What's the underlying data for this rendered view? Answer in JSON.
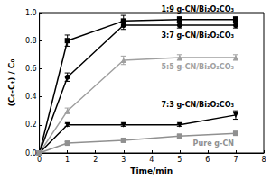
{
  "chart_data": {
    "type": "line",
    "x_label": "Time/min",
    "y_label": "(C₀-Cₜ) / C₀",
    "x": [
      0,
      1,
      3,
      5,
      7
    ],
    "xlim": [
      0,
      8
    ],
    "xticks": [
      0,
      1,
      2,
      3,
      4,
      5,
      6,
      7,
      8
    ],
    "ylim": [
      0,
      1.0
    ],
    "yticks": [
      {
        "value": 0,
        "label": "0.0"
      },
      0.2,
      0.4,
      0.6,
      0.8,
      {
        "value": 1.0,
        "label": "1.0"
      }
    ],
    "series": [
      {
        "name": "1:9 g-CN/Bi₂O₂CO₃",
        "color": "#000000",
        "marker": "square",
        "values": [
          0,
          0.8,
          0.94,
          0.95,
          0.95
        ],
        "errors": [
          0,
          0.04,
          0.04,
          0.02,
          0.02
        ]
      },
      {
        "name": "3:7 g-CN/Bi₂O₂CO₃",
        "color": "#000000",
        "marker": "circle",
        "values": [
          0,
          0.54,
          0.91,
          0.91,
          0.91
        ],
        "errors": [
          0,
          0.03,
          0.03,
          0.02,
          0.02
        ]
      },
      {
        "name": "5:5 g-CN/Bi₂O₂CO₃",
        "color": "#a0a0a0",
        "marker": "triangle",
        "values": [
          0,
          0.3,
          0.66,
          0.68,
          0.68
        ],
        "errors": [
          0,
          0.02,
          0.03,
          0.02,
          0.02
        ]
      },
      {
        "name": "7:3 g-CN/Bi₂O₂CO₃",
        "color": "#000000",
        "marker": "triangle-down",
        "values": [
          0,
          0.2,
          0.2,
          0.2,
          0.27
        ],
        "errors": [
          0,
          0.01,
          0.01,
          0.01,
          0.03
        ]
      },
      {
        "name": "Pure g-CN",
        "color": "#909090",
        "marker": "square",
        "values": [
          0,
          0.07,
          0.09,
          0.12,
          0.14
        ],
        "errors": [
          0,
          0.01,
          0.01,
          0.01,
          0.01
        ]
      }
    ]
  }
}
